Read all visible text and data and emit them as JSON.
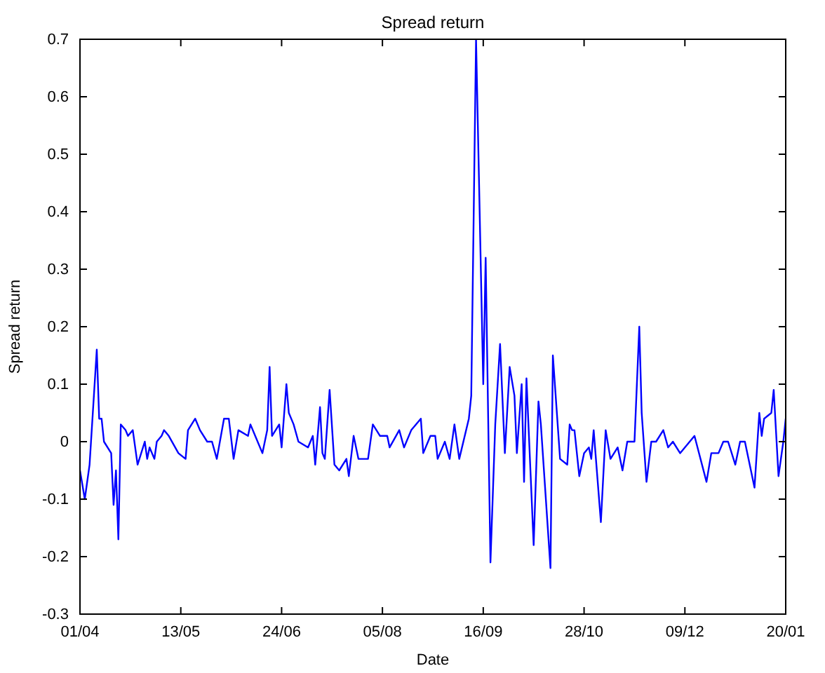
{
  "chart_data": {
    "type": "line",
    "title": "Spread return",
    "xlabel": "Date",
    "ylabel": "Spread return",
    "xlim": [
      "2008-04-01",
      "2009-01-20"
    ],
    "ylim": [
      -0.3,
      0.7
    ],
    "xticks": [
      {
        "value": "2008-04-01",
        "label": "01/04"
      },
      {
        "value": "2008-05-13",
        "label": "13/05"
      },
      {
        "value": "2008-06-24",
        "label": "24/06"
      },
      {
        "value": "2008-08-05",
        "label": "05/08"
      },
      {
        "value": "2008-09-16",
        "label": "16/09"
      },
      {
        "value": "2008-10-28",
        "label": "28/10"
      },
      {
        "value": "2008-12-09",
        "label": "09/12"
      },
      {
        "value": "2009-01-20",
        "label": "20/01"
      }
    ],
    "yticks": [
      -0.3,
      -0.2,
      -0.1,
      0,
      0.1,
      0.2,
      0.3,
      0.4,
      0.5,
      0.6,
      0.7
    ],
    "grid": false,
    "marker": "none",
    "line_style": "solid",
    "series": [
      {
        "color": "#0000ff",
        "x": [
          "2008-04-01",
          "2008-04-03",
          "2008-04-05",
          "2008-04-08",
          "2008-04-09",
          "2008-04-10",
          "2008-04-11",
          "2008-04-14",
          "2008-04-15",
          "2008-04-16",
          "2008-04-17",
          "2008-04-18",
          "2008-04-20",
          "2008-04-21",
          "2008-04-23",
          "2008-04-25",
          "2008-04-28",
          "2008-04-29",
          "2008-04-30",
          "2008-05-02",
          "2008-05-03",
          "2008-05-05",
          "2008-05-06",
          "2008-05-08",
          "2008-05-12",
          "2008-05-15",
          "2008-05-16",
          "2008-05-19",
          "2008-05-21",
          "2008-05-24",
          "2008-05-26",
          "2008-05-28",
          "2008-05-31",
          "2008-06-02",
          "2008-06-04",
          "2008-06-06",
          "2008-06-10",
          "2008-06-11",
          "2008-06-13",
          "2008-06-16",
          "2008-06-18",
          "2008-06-19",
          "2008-06-20",
          "2008-06-23",
          "2008-06-24",
          "2008-06-26",
          "2008-06-27",
          "2008-06-29",
          "2008-07-01",
          "2008-07-05",
          "2008-07-07",
          "2008-07-08",
          "2008-07-10",
          "2008-07-11",
          "2008-07-12",
          "2008-07-14",
          "2008-07-16",
          "2008-07-18",
          "2008-07-21",
          "2008-07-22",
          "2008-07-24",
          "2008-07-26",
          "2008-07-30",
          "2008-08-01",
          "2008-08-04",
          "2008-08-07",
          "2008-08-08",
          "2008-08-12",
          "2008-08-14",
          "2008-08-17",
          "2008-08-21",
          "2008-08-22",
          "2008-08-25",
          "2008-08-27",
          "2008-08-28",
          "2008-08-31",
          "2008-09-02",
          "2008-09-04",
          "2008-09-06",
          "2008-09-10",
          "2008-09-11",
          "2008-09-13",
          "2008-09-16",
          "2008-09-17",
          "2008-09-19",
          "2008-09-21",
          "2008-09-23",
          "2008-09-25",
          "2008-09-27",
          "2008-09-29",
          "2008-09-30",
          "2008-10-02",
          "2008-10-03",
          "2008-10-04",
          "2008-10-07",
          "2008-10-09",
          "2008-10-10",
          "2008-10-14",
          "2008-10-15",
          "2008-10-18",
          "2008-10-21",
          "2008-10-22",
          "2008-10-23",
          "2008-10-24",
          "2008-10-26",
          "2008-10-28",
          "2008-10-30",
          "2008-10-31",
          "2008-11-01",
          "2008-11-04",
          "2008-11-06",
          "2008-11-08",
          "2008-11-11",
          "2008-11-13",
          "2008-11-15",
          "2008-11-18",
          "2008-11-20",
          "2008-11-21",
          "2008-11-23",
          "2008-11-25",
          "2008-11-27",
          "2008-11-30",
          "2008-12-02",
          "2008-12-04",
          "2008-12-07",
          "2008-12-13",
          "2008-12-18",
          "2008-12-20",
          "2008-12-23",
          "2008-12-25",
          "2008-12-27",
          "2008-12-30",
          "2009-01-01",
          "2009-01-03",
          "2009-01-07",
          "2009-01-09",
          "2009-01-10",
          "2009-01-11",
          "2009-01-14",
          "2009-01-15",
          "2009-01-17",
          "2009-01-19",
          "2009-01-20"
        ],
        "values": [
          -0.05,
          -0.1,
          -0.04,
          0.16,
          0.04,
          0.04,
          0,
          -0.02,
          -0.11,
          -0.05,
          -0.17,
          0.03,
          0.02,
          0.01,
          0.02,
          -0.04,
          0,
          -0.03,
          -0.01,
          -0.03,
          0,
          0.01,
          0.02,
          0.01,
          -0.02,
          -0.03,
          0.02,
          0.04,
          0.02,
          0,
          0,
          -0.03,
          0.04,
          0.04,
          -0.03,
          0.02,
          0.01,
          0.03,
          0.01,
          -0.02,
          0.02,
          0.13,
          0.01,
          0.03,
          -0.01,
          0.1,
          0.05,
          0.03,
          0,
          -0.01,
          0.01,
          -0.04,
          0.06,
          -0.02,
          -0.03,
          0.09,
          -0.04,
          -0.05,
          -0.03,
          -0.06,
          0.01,
          -0.03,
          -0.03,
          0.03,
          0.01,
          0.01,
          -0.01,
          0.02,
          -0.01,
          0.02,
          0.04,
          -0.02,
          0.01,
          0.01,
          -0.03,
          0,
          -0.03,
          0.03,
          -0.03,
          0.04,
          0.08,
          0.7,
          0.1,
          0.32,
          -0.21,
          0.03,
          0.17,
          -0.02,
          0.13,
          0.08,
          -0.02,
          0.1,
          -0.07,
          0.11,
          -0.18,
          0.07,
          0.03,
          -0.22,
          0.15,
          -0.03,
          -0.04,
          0.03,
          0.02,
          0.02,
          -0.06,
          -0.02,
          -0.01,
          -0.03,
          0.02,
          -0.14,
          0.02,
          -0.03,
          -0.01,
          -0.05,
          0,
          0,
          0.2,
          0.05,
          -0.07,
          0,
          0,
          0.02,
          -0.01,
          0,
          -0.02,
          0.01,
          -0.07,
          -0.02,
          -0.02,
          0,
          0,
          -0.04,
          0,
          0,
          -0.08,
          0.05,
          0.01,
          0.04,
          0.05,
          0.09,
          -0.06,
          0,
          0.04
        ]
      }
    ]
  }
}
